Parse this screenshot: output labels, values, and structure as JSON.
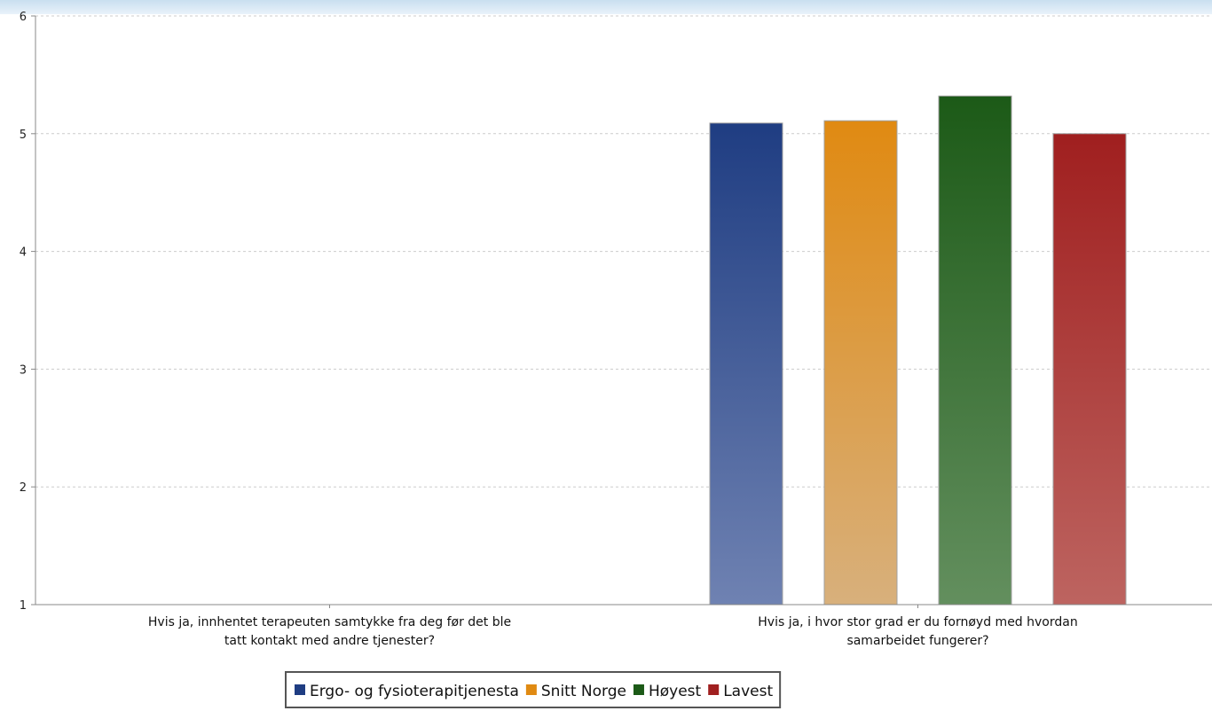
{
  "colors": {
    "series": [
      "#1f3d82",
      "#e08a12",
      "#1c5a17",
      "#a01f1f"
    ],
    "bar_bottom": [
      "#6f82b2",
      "#d8b07c",
      "#638f5e",
      "#bd6460"
    ],
    "grid": "#cccccc",
    "axis": "#888888"
  },
  "chart_data": {
    "type": "bar",
    "title": "",
    "xlabel": "",
    "ylabel": "",
    "ylim": [
      1,
      6
    ],
    "yticks": [
      "1",
      "2",
      "3",
      "4",
      "5",
      "6"
    ],
    "grid": true,
    "legend_position": "bottom",
    "categories": [
      [
        "Hvis ja, innhentet terapeuten samtykke fra deg før det ble",
        "tatt kontakt med andre tjenester?"
      ],
      [
        "Hvis ja, i hvor stor grad er du fornøyd med hvordan",
        "samarbeidet fungerer?"
      ]
    ],
    "series": [
      {
        "name": "Ergo- og fysioterapitjenesta",
        "values": [
          null,
          5.09
        ]
      },
      {
        "name": "Snitt Norge",
        "values": [
          null,
          5.11
        ]
      },
      {
        "name": "Høyest",
        "values": [
          null,
          5.32
        ]
      },
      {
        "name": "Lavest",
        "values": [
          null,
          5.0
        ]
      }
    ]
  }
}
